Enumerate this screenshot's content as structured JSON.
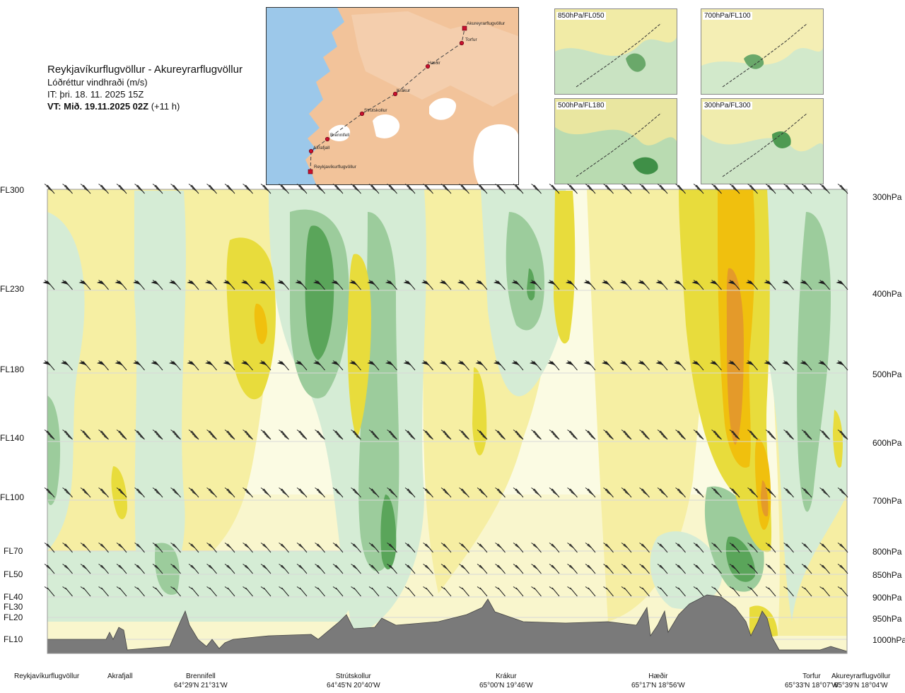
{
  "header": {
    "title": "Reykjavíkurflugvöllur - Akureyrarflugvöllur",
    "subtitle": "Lóðréttur vindhraði (m/s)",
    "issue_time": "IT: þri. 18. 11. 2025 15Z",
    "valid_time_bold": "VT: Mið. 19.11.2025 02Z",
    "valid_time_rest": "(+11 h)"
  },
  "overview_map": {
    "places": [
      "Akureyrarflugvöllur",
      "Torfur",
      "Hæðir",
      "Krákur",
      "Strútskollur",
      "Brennifell",
      "Akrafjall",
      "Reykjavíkurflugvöllur"
    ],
    "colors": {
      "sea": "#9cc8ea",
      "land": "#f2c39a",
      "ice": "#ffffff",
      "route": "#c8102e"
    }
  },
  "thumbnails": [
    {
      "label": "850hPa/FL050"
    },
    {
      "label": "700hPa/FL100"
    },
    {
      "label": "500hPa/FL180"
    },
    {
      "label": "300hPa/FL300"
    }
  ],
  "left_axis": [
    "FL300",
    "FL230",
    "FL180",
    "FL140",
    "FL100",
    "FL70",
    "FL50",
    "FL40",
    "FL30",
    "FL20",
    "FL10"
  ],
  "right_axis": [
    "300hPa",
    "400hPa",
    "500hPa",
    "600hPa",
    "700hPa",
    "800hPa",
    "850hPa",
    "900hPa",
    "950hPa",
    "1000hPa"
  ],
  "bottom_locations": [
    {
      "name": "Reykjavíkurflugvöllur",
      "coord": ""
    },
    {
      "name": "Akrafjall",
      "coord": ""
    },
    {
      "name": "Brennifell",
      "coord": "64°29'N 21°31'W"
    },
    {
      "name": "Strútskollur",
      "coord": "64°45'N 20°40'W"
    },
    {
      "name": "Krákur",
      "coord": "65°00'N 19°46'W"
    },
    {
      "name": "Hæðir",
      "coord": "65°17'N 18°56'W"
    },
    {
      "name": "Torfur",
      "coord": "65°33'N 18°07'W"
    },
    {
      "name": "Akureyrarflugvöllur",
      "coord": "65°39'N 18°04'W"
    }
  ],
  "chart_data": {
    "type": "heatmap",
    "title": "Lóðréttur vindhraði (m/s)",
    "x": [
      "Reykjavíkurflugvöllur",
      "Akrafjall",
      "Brennifell",
      "Strútskollur",
      "Krákur",
      "Hæðir",
      "Torfur",
      "Akureyrarflugvöllur"
    ],
    "y_levels_hPa": [
      1000,
      950,
      900,
      850,
      800,
      700,
      600,
      500,
      400,
      300
    ],
    "y_flight_levels": [
      "FL10",
      "FL20",
      "FL30",
      "FL40",
      "FL50",
      "FL70",
      "FL100",
      "FL140",
      "FL180",
      "FL230",
      "FL300"
    ],
    "colors": {
      "strong_down": "#5aa55a",
      "down": "#9ccc9c",
      "weak_down": "#d5ecd5",
      "neutral": "#fbfbe3",
      "weak_up": "#f6efa3",
      "up": "#e8dc3c",
      "strong_up": "#f0c00e",
      "very_strong_up": "#e49a2a",
      "terrain": "#7a7a7a"
    },
    "grid": true
  }
}
